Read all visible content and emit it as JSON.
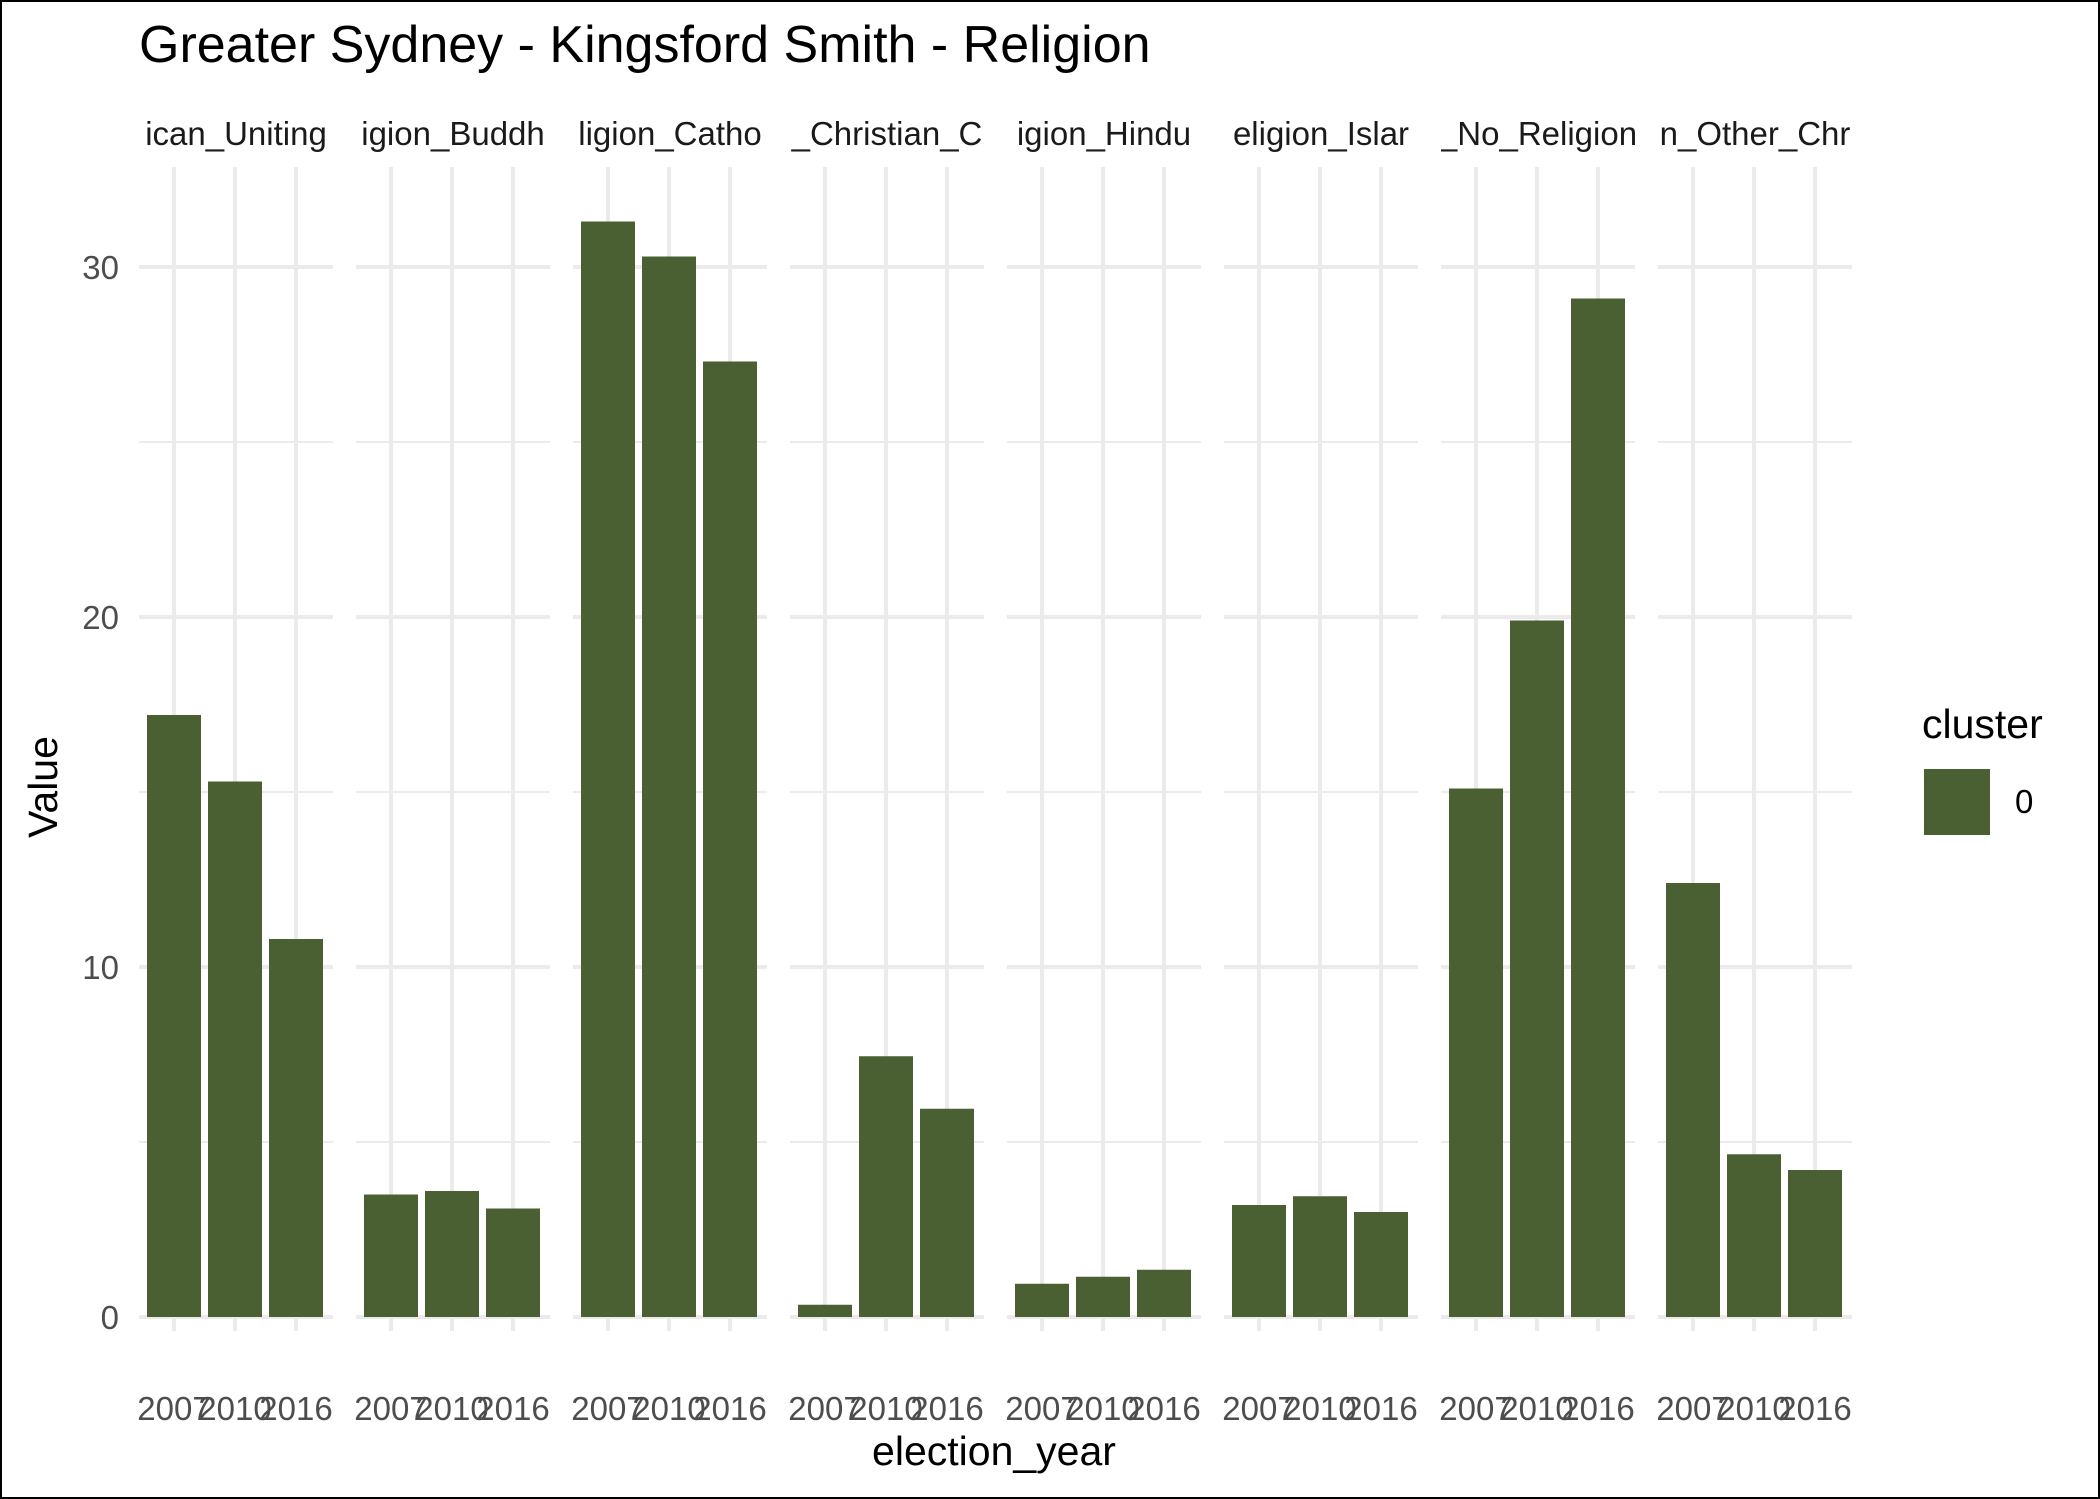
{
  "chart_data": {
    "type": "bar",
    "title": "Greater Sydney - Kingsford Smith - Religion",
    "xlabel": "election_year",
    "ylabel": "Value",
    "ylim": [
      0,
      32.5
    ],
    "y_ticks": [
      "0",
      "10",
      "20",
      "30"
    ],
    "categories": [
      "2007",
      "2010",
      "2016"
    ],
    "grid": true,
    "bar_color": "#4a5f32",
    "facets": [
      {
        "label": "ican_Uniting",
        "values": [
          17.2,
          15.3,
          10.8
        ]
      },
      {
        "label": "igion_Buddh",
        "values": [
          3.5,
          3.6,
          3.1
        ]
      },
      {
        "label": "ligion_Catho",
        "values": [
          31.3,
          30.3,
          27.3
        ]
      },
      {
        "label": "_Christian_C",
        "values": [
          0.35,
          7.45,
          5.95
        ]
      },
      {
        "label": "igion_Hindu",
        "values": [
          0.95,
          1.15,
          1.35
        ]
      },
      {
        "label": "eligion_Islar",
        "values": [
          3.2,
          3.45,
          3.0
        ]
      },
      {
        "label": "_No_Religion",
        "values": [
          15.1,
          19.9,
          29.1
        ]
      },
      {
        "label": "n_Other_Chr",
        "values": [
          12.4,
          4.65,
          4.2
        ]
      }
    ],
    "legend": {
      "title": "cluster",
      "entries": [
        {
          "label": "0",
          "color": "#4a5f32"
        }
      ],
      "position": "right"
    }
  }
}
